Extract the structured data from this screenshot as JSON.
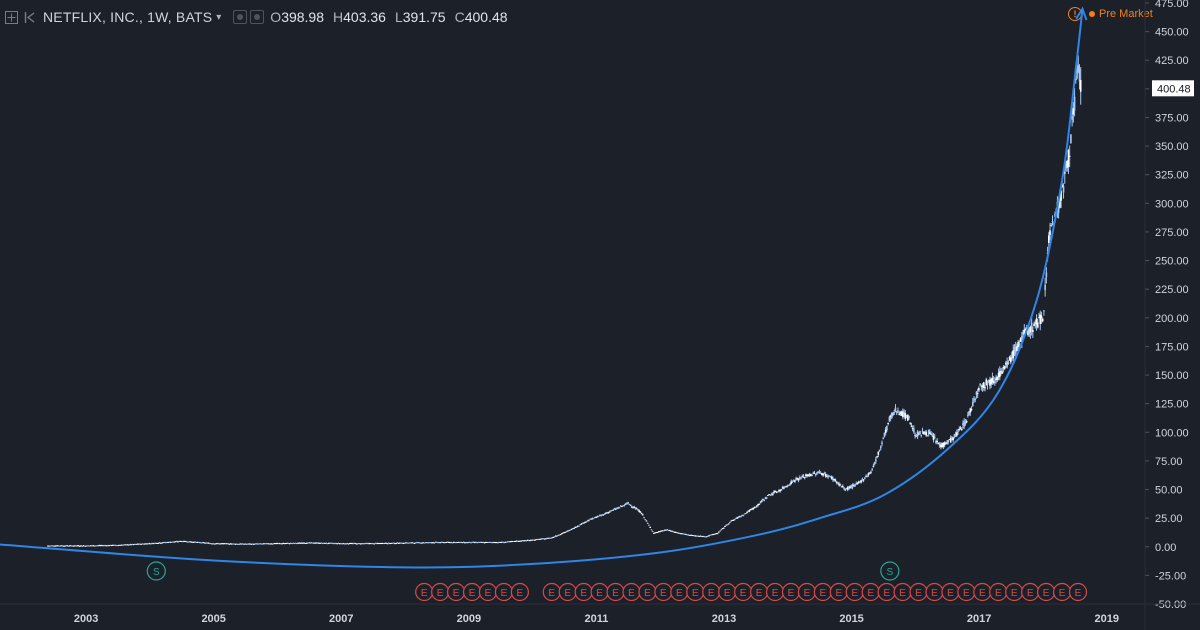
{
  "header": {
    "symbol": "NETFLIX, INC., 1W, BATS",
    "ohlc": [
      {
        "key": "O",
        "value": "398.98"
      },
      {
        "key": "H",
        "value": "403.36"
      },
      {
        "key": "L",
        "value": "391.75"
      },
      {
        "key": "C",
        "value": "400.48"
      }
    ]
  },
  "pre_market": {
    "label": "Pre Market",
    "icon_text": "!",
    "color": "#f57f17"
  },
  "colors": {
    "background": "#1c2029",
    "candle": "#a9c7ef",
    "trend": "#2f86e6",
    "dividend": "#26a69a",
    "earnings": "#d84a4a"
  },
  "chart_data": {
    "type": "line",
    "series": [
      {
        "x": [
          2002.4,
          2003.0,
          2003.5,
          2004.0,
          2004.5,
          2005.0,
          2005.5,
          2006.0,
          2006.5,
          2007.0,
          2007.5,
          2008.0,
          2008.5,
          2009.0,
          2009.5,
          2010.0,
          2010.3,
          2010.6,
          2010.9,
          2011.1,
          2011.3,
          2011.5,
          2011.7,
          2011.9,
          2012.1,
          2012.3,
          2012.5,
          2012.7,
          2012.9,
          2013.1,
          2013.3,
          2013.5,
          2013.7,
          2013.9,
          2014.1,
          2014.3,
          2014.5,
          2014.7,
          2014.9,
          2015.1,
          2015.3,
          2015.4,
          2015.5,
          2015.6,
          2015.7,
          2015.9,
          2016.0,
          2016.2,
          2016.4,
          2016.6,
          2016.8,
          2016.9,
          2017.0,
          2017.2,
          2017.4,
          2017.5,
          2017.6,
          2017.7,
          2017.9,
          2018.0,
          2018.1,
          2018.2,
          2018.3,
          2018.4,
          2018.5,
          2018.55,
          2018.6
        ],
        "values": [
          1,
          1,
          1.5,
          3,
          5,
          3,
          2.5,
          3,
          3.5,
          3,
          3,
          3.5,
          4,
          4,
          4,
          6,
          8,
          15,
          24,
          28,
          33,
          38,
          30,
          12,
          15,
          12,
          10,
          9,
          12,
          22,
          28,
          35,
          45,
          50,
          58,
          62,
          65,
          60,
          50,
          55,
          65,
          78,
          95,
          112,
          120,
          112,
          98,
          100,
          88,
          95,
          110,
          125,
          140,
          145,
          155,
          165,
          175,
          185,
          195,
          200,
          275,
          290,
          310,
          340,
          390,
          420,
          400
        ]
      }
    ],
    "xlim": [
      2001.65,
      2019.6
    ],
    "ylim": [
      -50,
      475
    ],
    "y_ticks": [
      475,
      450,
      425,
      400,
      375,
      350,
      325,
      300,
      275,
      250,
      225,
      200,
      175,
      150,
      125,
      100,
      75,
      50,
      25,
      0,
      -25,
      -50
    ],
    "y_tick_labels": [
      "475.00",
      "450.00",
      "425.00",
      "400.00",
      "375.00",
      "350.00",
      "325.00",
      "300.00",
      "275.00",
      "250.00",
      "225.00",
      "200.00",
      "175.00",
      "150.00",
      "125.00",
      "100.00",
      "75.00",
      "50.00",
      "25.00",
      "0.00",
      "-25.00",
      "-50.00"
    ],
    "x_ticks": [
      2003,
      2005,
      2007,
      2009,
      2011,
      2013,
      2015,
      2017,
      2019
    ],
    "x_tick_labels": [
      "2003",
      "2005",
      "2007",
      "2009",
      "2011",
      "2013",
      "2015",
      "2017",
      "2019"
    ],
    "last_price": 400.48,
    "last_price_label": "400.48",
    "trend_curve": [
      [
        2001.65,
        2
      ],
      [
        2005.0,
        -12
      ],
      [
        2008.0,
        -18
      ],
      [
        2010.0,
        -15
      ],
      [
        2012.0,
        -5
      ],
      [
        2013.5,
        10
      ],
      [
        2014.5,
        25
      ],
      [
        2015.5,
        45
      ],
      [
        2016.5,
        85
      ],
      [
        2017.3,
        135
      ],
      [
        2017.9,
        215
      ],
      [
        2018.3,
        320
      ],
      [
        2018.52,
        420
      ],
      [
        2018.62,
        470
      ]
    ],
    "dividends": [
      {
        "x": 2004.1,
        "label": "S"
      },
      {
        "x": 2015.6,
        "label": "S"
      }
    ],
    "earnings": {
      "label": "E",
      "x": [
        2008.3,
        2008.55,
        2008.8,
        2009.05,
        2009.3,
        2009.55,
        2009.8,
        2010.3,
        2010.55,
        2010.8,
        2011.05,
        2011.3,
        2011.55,
        2011.8,
        2012.05,
        2012.3,
        2012.55,
        2012.8,
        2013.05,
        2013.3,
        2013.55,
        2013.8,
        2014.05,
        2014.3,
        2014.55,
        2014.8,
        2015.05,
        2015.3,
        2015.55,
        2015.8,
        2016.05,
        2016.3,
        2016.55,
        2016.8,
        2017.05,
        2017.3,
        2017.55,
        2017.8,
        2018.05,
        2018.3,
        2018.55
      ]
    }
  }
}
